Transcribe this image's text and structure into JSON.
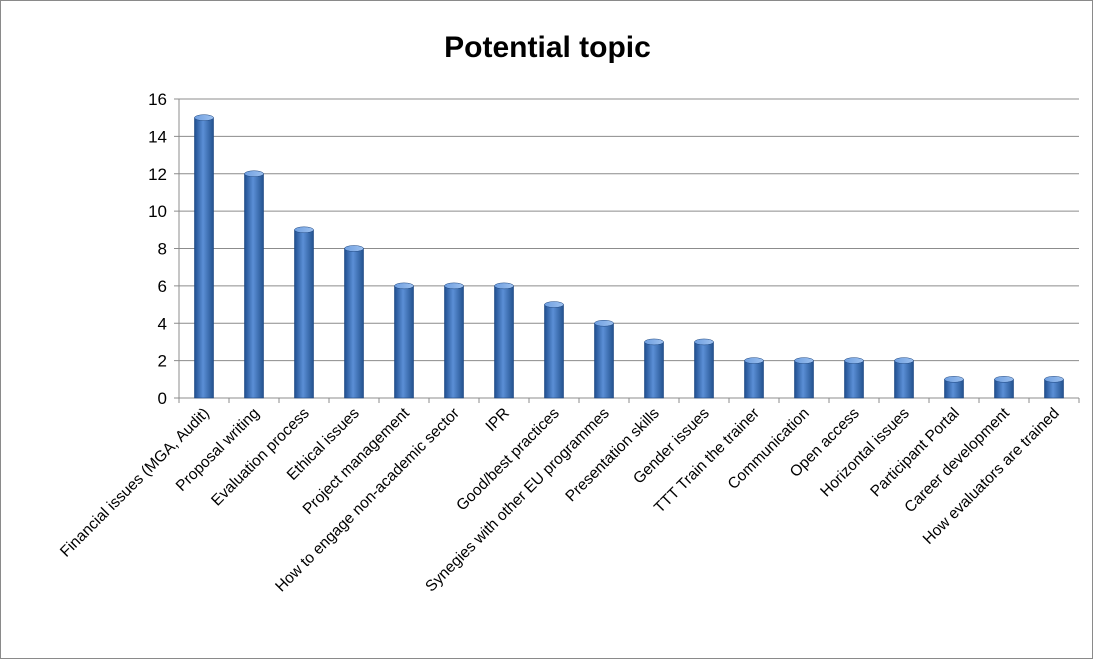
{
  "chart_data": {
    "type": "bar",
    "title": "Potential topic",
    "xlabel": "",
    "ylabel": "",
    "ylim": [
      0,
      16
    ],
    "yticks": [
      0,
      2,
      4,
      6,
      8,
      10,
      12,
      14,
      16
    ],
    "grid": true,
    "legend": "none",
    "bar_color": "#3d6fb4",
    "categories": [
      "Financial issues (MGA, Audit)",
      "Proposal writing",
      "Evaluation process",
      "Ethical issues",
      "Project management",
      "How to engage non-academic sector",
      "IPR",
      "Good/best practices",
      "Synegies with other EU programmes",
      "Presentation skills",
      "Gender issues",
      "TTT Train the trainer",
      "Communication",
      "Open access",
      "Horizontal issues",
      "Participant Portal",
      "Career development",
      "How evaluators are trained"
    ],
    "values": [
      15,
      12,
      9,
      8,
      6,
      6,
      6,
      5,
      4,
      3,
      3,
      2,
      2,
      2,
      2,
      1,
      1,
      1
    ]
  }
}
